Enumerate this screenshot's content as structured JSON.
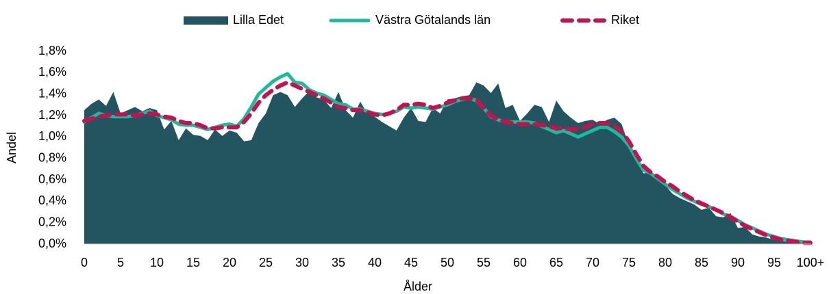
{
  "chart_data": {
    "type": "line",
    "x_label": "Ålder",
    "y_label": "Andel",
    "categories": [
      "0",
      null,
      null,
      null,
      null,
      "5",
      null,
      null,
      null,
      null,
      "10",
      null,
      null,
      null,
      null,
      "15",
      null,
      null,
      null,
      null,
      "20",
      null,
      null,
      null,
      null,
      "25",
      null,
      null,
      null,
      null,
      "30",
      null,
      null,
      null,
      null,
      "35",
      null,
      null,
      null,
      null,
      "40",
      null,
      null,
      null,
      null,
      "45",
      null,
      null,
      null,
      null,
      "50",
      null,
      null,
      null,
      null,
      "55",
      null,
      null,
      null,
      null,
      "60",
      null,
      null,
      null,
      null,
      "65",
      null,
      null,
      null,
      null,
      "70",
      null,
      null,
      null,
      null,
      "75",
      null,
      null,
      null,
      null,
      "80",
      null,
      null,
      null,
      null,
      "85",
      null,
      null,
      null,
      null,
      "90",
      null,
      null,
      null,
      null,
      "95",
      null,
      null,
      null,
      null,
      "100+"
    ],
    "ylim": [
      0,
      1.8
    ],
    "yticks": [
      {
        "value": 0,
        "label": "0,0%"
      },
      {
        "value": 0.2,
        "label": "0,2%"
      },
      {
        "value": 0.4,
        "label": "0,4%"
      },
      {
        "value": 0.6,
        "label": "0,6%"
      },
      {
        "value": 0.8,
        "label": "0,8%"
      },
      {
        "value": 1.0,
        "label": "1,0%"
      },
      {
        "value": 1.2,
        "label": "1,2%"
      },
      {
        "value": 1.4,
        "label": "1,4%"
      },
      {
        "value": 1.6,
        "label": "1,6%"
      },
      {
        "value": 1.8,
        "label": "1,8%"
      }
    ],
    "legend": "top",
    "series": [
      {
        "name": "Lilla Edet",
        "type": "area",
        "color": "#225560",
        "values": [
          1.25,
          1.31,
          1.35,
          1.29,
          1.42,
          1.22,
          1.25,
          1.28,
          1.24,
          1.27,
          1.25,
          1.07,
          1.15,
          0.97,
          1.08,
          1.02,
          1.01,
          0.97,
          1.07,
          1.01,
          1.06,
          1.04,
          0.96,
          0.97,
          1.13,
          1.22,
          1.39,
          1.42,
          1.39,
          1.28,
          1.36,
          1.43,
          1.37,
          1.35,
          1.27,
          1.42,
          1.25,
          1.18,
          1.33,
          1.22,
          1.19,
          1.14,
          1.1,
          1.06,
          1.18,
          1.27,
          1.15,
          1.14,
          1.27,
          1.22,
          1.35,
          1.36,
          1.38,
          1.39,
          1.51,
          1.48,
          1.41,
          1.5,
          1.27,
          1.3,
          1.15,
          1.22,
          1.3,
          1.28,
          1.14,
          1.34,
          1.24,
          1.18,
          1.13,
          1.15,
          1.16,
          1.12,
          1.16,
          1.18,
          1.12,
          0.92,
          0.8,
          0.66,
          0.67,
          0.62,
          0.55,
          0.47,
          0.43,
          0.4,
          0.37,
          0.32,
          0.34,
          0.26,
          0.25,
          0.29,
          0.15,
          0.16,
          0.09,
          0.07,
          0.06,
          0.04,
          0.03,
          0.02,
          0.02,
          0.01,
          0.01
        ]
      },
      {
        "name": "Västra Götalands län",
        "type": "line",
        "color": "#1abc9c",
        "values": [
          1.14,
          1.18,
          1.22,
          1.2,
          1.19,
          1.19,
          1.19,
          1.2,
          1.22,
          1.24,
          1.2,
          1.18,
          1.16,
          1.12,
          1.11,
          1.11,
          1.09,
          1.07,
          1.09,
          1.11,
          1.12,
          1.1,
          1.17,
          1.28,
          1.4,
          1.46,
          1.52,
          1.56,
          1.59,
          1.51,
          1.5,
          1.44,
          1.41,
          1.39,
          1.35,
          1.31,
          1.3,
          1.26,
          1.26,
          1.24,
          1.22,
          1.21,
          1.22,
          1.24,
          1.28,
          1.27,
          1.28,
          1.27,
          1.26,
          1.28,
          1.3,
          1.33,
          1.35,
          1.36,
          1.34,
          1.27,
          1.19,
          1.16,
          1.14,
          1.14,
          1.14,
          1.14,
          1.13,
          1.1,
          1.07,
          1.04,
          1.06,
          1.03,
          1.0,
          1.03,
          1.06,
          1.09,
          1.09,
          1.05,
          1.0,
          0.92,
          0.8,
          0.69,
          0.66,
          0.61,
          0.56,
          0.51,
          0.47,
          0.43,
          0.4,
          0.37,
          0.35,
          0.32,
          0.28,
          0.26,
          0.22,
          0.18,
          0.15,
          0.12,
          0.09,
          0.07,
          0.05,
          0.04,
          0.03,
          0.02,
          0.02
        ]
      },
      {
        "name": "Riket",
        "type": "line",
        "dashed": true,
        "color": "#c8104e",
        "values": [
          1.15,
          1.17,
          1.19,
          1.2,
          1.21,
          1.21,
          1.21,
          1.2,
          1.21,
          1.22,
          1.21,
          1.19,
          1.18,
          1.15,
          1.13,
          1.13,
          1.11,
          1.08,
          1.08,
          1.09,
          1.09,
          1.09,
          1.14,
          1.22,
          1.32,
          1.39,
          1.44,
          1.48,
          1.51,
          1.48,
          1.45,
          1.42,
          1.39,
          1.36,
          1.32,
          1.28,
          1.27,
          1.25,
          1.25,
          1.23,
          1.21,
          1.2,
          1.22,
          1.25,
          1.3,
          1.3,
          1.31,
          1.3,
          1.27,
          1.29,
          1.32,
          1.34,
          1.36,
          1.36,
          1.35,
          1.27,
          1.2,
          1.16,
          1.14,
          1.13,
          1.12,
          1.12,
          1.12,
          1.11,
          1.1,
          1.08,
          1.08,
          1.07,
          1.07,
          1.09,
          1.12,
          1.13,
          1.13,
          1.1,
          1.05,
          0.96,
          0.84,
          0.73,
          0.67,
          0.63,
          0.58,
          0.54,
          0.49,
          0.45,
          0.41,
          0.38,
          0.35,
          0.32,
          0.29,
          0.25,
          0.21,
          0.17,
          0.14,
          0.11,
          0.08,
          0.06,
          0.04,
          0.03,
          0.02,
          0.01,
          0.01
        ]
      }
    ]
  }
}
